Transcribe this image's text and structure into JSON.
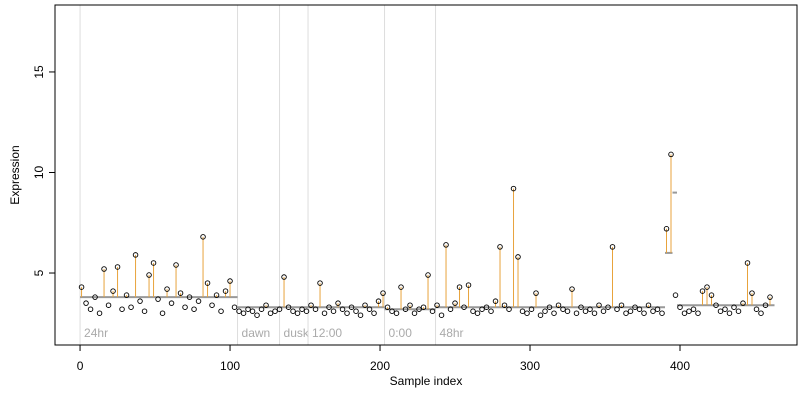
{
  "chart_data": {
    "type": "scatter",
    "xlabel": "Sample index",
    "ylabel": "Expression",
    "xlim": [
      -16.7,
      478
    ],
    "ylim": [
      1.42,
      18.33
    ],
    "xticks": [
      0,
      100,
      200,
      300,
      400
    ],
    "yticks": [
      5,
      10,
      15
    ],
    "point_color": "#000000",
    "stem_color": "#e8a33c",
    "level_color": "#999999",
    "bar_color": "#7ea6e0",
    "divider_color": "#dddddd",
    "x": [
      1,
      4,
      7,
      10,
      13,
      16,
      19,
      22,
      25,
      28,
      31,
      34,
      37,
      40,
      43,
      46,
      49,
      52,
      55,
      58,
      61,
      64,
      67,
      70,
      73,
      76,
      79,
      82,
      85,
      88,
      91,
      94,
      97,
      100,
      103,
      106,
      109,
      112,
      115,
      118,
      121,
      124,
      127,
      130,
      133,
      136,
      139,
      142,
      145,
      148,
      151,
      154,
      157,
      160,
      163,
      166,
      169,
      172,
      175,
      178,
      181,
      184,
      187,
      190,
      193,
      196,
      199,
      202,
      205,
      208,
      211,
      214,
      217,
      220,
      223,
      226,
      229,
      232,
      235,
      238,
      241,
      244,
      247,
      250,
      253,
      256,
      259,
      262,
      265,
      268,
      271,
      274,
      277,
      280,
      283,
      286,
      289,
      292,
      295,
      298,
      301,
      304,
      307,
      310,
      313,
      316,
      319,
      322,
      325,
      328,
      331,
      334,
      337,
      340,
      343,
      346,
      349,
      352,
      355,
      358,
      361,
      364,
      367,
      370,
      373,
      376,
      379,
      382,
      385,
      388,
      391,
      394,
      397,
      400,
      403,
      406,
      409,
      412,
      415,
      418,
      421,
      424,
      427,
      430,
      433,
      436,
      439,
      442,
      445,
      448,
      451,
      454,
      457,
      460
    ],
    "values": [
      4.3,
      3.5,
      3.2,
      3.8,
      3.0,
      5.2,
      3.4,
      4.1,
      5.3,
      3.2,
      3.9,
      3.3,
      5.9,
      3.6,
      3.1,
      4.9,
      5.5,
      3.7,
      3.0,
      4.2,
      3.5,
      5.4,
      4.0,
      3.3,
      3.8,
      3.2,
      3.6,
      6.8,
      4.5,
      3.4,
      3.9,
      3.1,
      4.1,
      4.6,
      3.3,
      3.1,
      3.0,
      3.2,
      3.1,
      2.9,
      3.2,
      3.4,
      3.0,
      3.1,
      3.2,
      4.8,
      3.3,
      3.1,
      3.0,
      3.2,
      3.1,
      3.4,
      3.2,
      4.5,
      3.0,
      3.3,
      3.1,
      3.5,
      3.2,
      3.0,
      3.3,
      3.1,
      2.9,
      3.4,
      3.2,
      3.0,
      3.6,
      4.0,
      3.3,
      3.1,
      3.0,
      4.3,
      3.2,
      3.4,
      3.0,
      3.2,
      3.3,
      4.9,
      3.1,
      3.4,
      2.9,
      6.4,
      3.2,
      3.5,
      4.3,
      3.3,
      4.4,
      3.1,
      3.0,
      3.2,
      3.3,
      3.1,
      3.6,
      6.3,
      3.4,
      3.2,
      9.2,
      5.8,
      3.1,
      3.0,
      3.2,
      4.0,
      2.9,
      3.1,
      3.3,
      3.0,
      3.4,
      3.2,
      3.1,
      4.2,
      3.0,
      3.3,
      3.1,
      3.2,
      3.0,
      3.4,
      3.1,
      3.3,
      6.3,
      3.2,
      3.4,
      3.0,
      3.1,
      3.3,
      3.2,
      3.0,
      3.4,
      3.1,
      3.2,
      3.0,
      7.2,
      10.9,
      3.9,
      3.3,
      3.0,
      3.1,
      3.2,
      3.0,
      4.1,
      4.3,
      3.9,
      3.4,
      3.1,
      3.2,
      3.0,
      3.3,
      3.1,
      3.5,
      5.5,
      4.0,
      3.2,
      3.0,
      3.4,
      3.8
    ],
    "segments": [
      {
        "start": 0,
        "end": 105,
        "level": 3.8
      },
      {
        "start": 105,
        "end": 133,
        "level": 3.3
      },
      {
        "start": 133,
        "end": 152,
        "level": 3.3
      },
      {
        "start": 152,
        "end": 203,
        "level": 3.3
      },
      {
        "start": 203,
        "end": 237,
        "level": 3.2
      },
      {
        "start": 237,
        "end": 390,
        "level": 3.3
      },
      {
        "start": 390,
        "end": 395,
        "level": 6.0
      },
      {
        "start": 395,
        "end": 398,
        "level": 9.0
      },
      {
        "start": 398,
        "end": 463,
        "level": 3.4
      }
    ],
    "annotations": [
      {
        "x": 0,
        "label": "24hr"
      },
      {
        "x": 105,
        "label": "dawn"
      },
      {
        "x": 133,
        "label": "dusk"
      },
      {
        "x": 152,
        "label": "12:00"
      },
      {
        "x": 203,
        "label": "0:00"
      },
      {
        "x": 237,
        "label": "48hr"
      }
    ]
  }
}
